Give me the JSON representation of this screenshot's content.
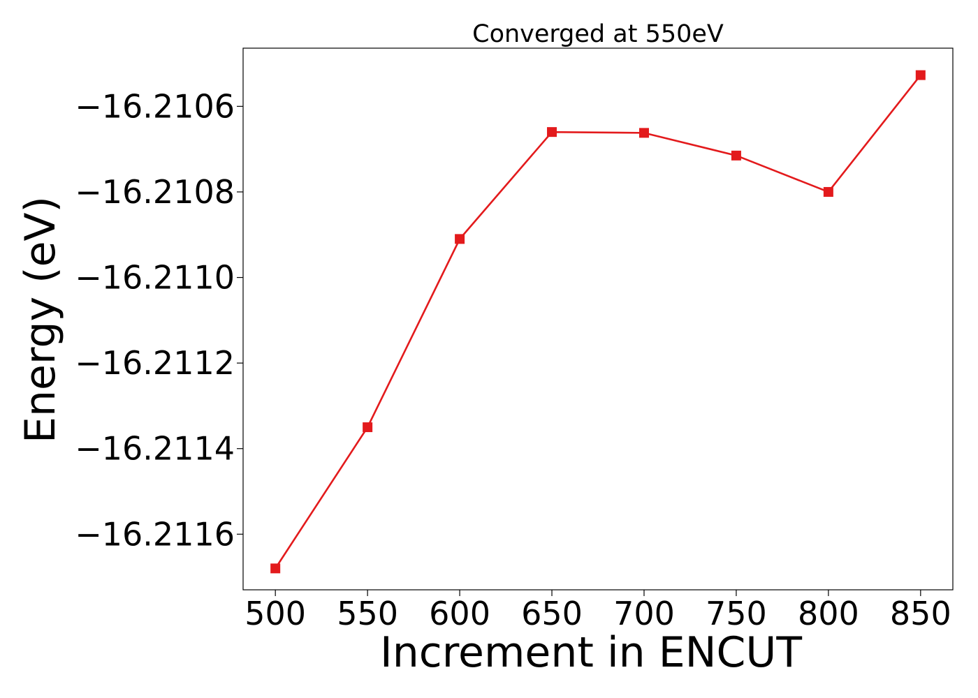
{
  "chart_data": {
    "type": "line",
    "title": "Converged at 550eV",
    "xlabel": "Increment in ENCUT",
    "ylabel": "Energy (eV)",
    "x": [
      500,
      550,
      600,
      650,
      700,
      750,
      800,
      850
    ],
    "series": [
      {
        "values": [
          -16.21168,
          -16.21135,
          -16.21091,
          -16.21066,
          -16.210662,
          -16.210715,
          -16.2108,
          -16.210527
        ],
        "color": "#e31a1c",
        "marker": "square"
      }
    ],
    "xticks": [
      500,
      550,
      600,
      650,
      700,
      750,
      800,
      850
    ],
    "xtick_labels": [
      "500",
      "550",
      "600",
      "650",
      "700",
      "750",
      "800",
      "850"
    ],
    "yticks": [
      -16.2106,
      -16.2108,
      -16.211,
      -16.2112,
      -16.2114,
      -16.2116
    ],
    "ytick_labels": [
      "−16.2106",
      "−16.2108",
      "−16.2110",
      "−16.2112",
      "−16.2114",
      "−16.2116"
    ],
    "xlim": [
      482.5,
      867.5
    ],
    "ylim": [
      -16.21173,
      -16.210464
    ],
    "grid": false,
    "legend": false
  }
}
